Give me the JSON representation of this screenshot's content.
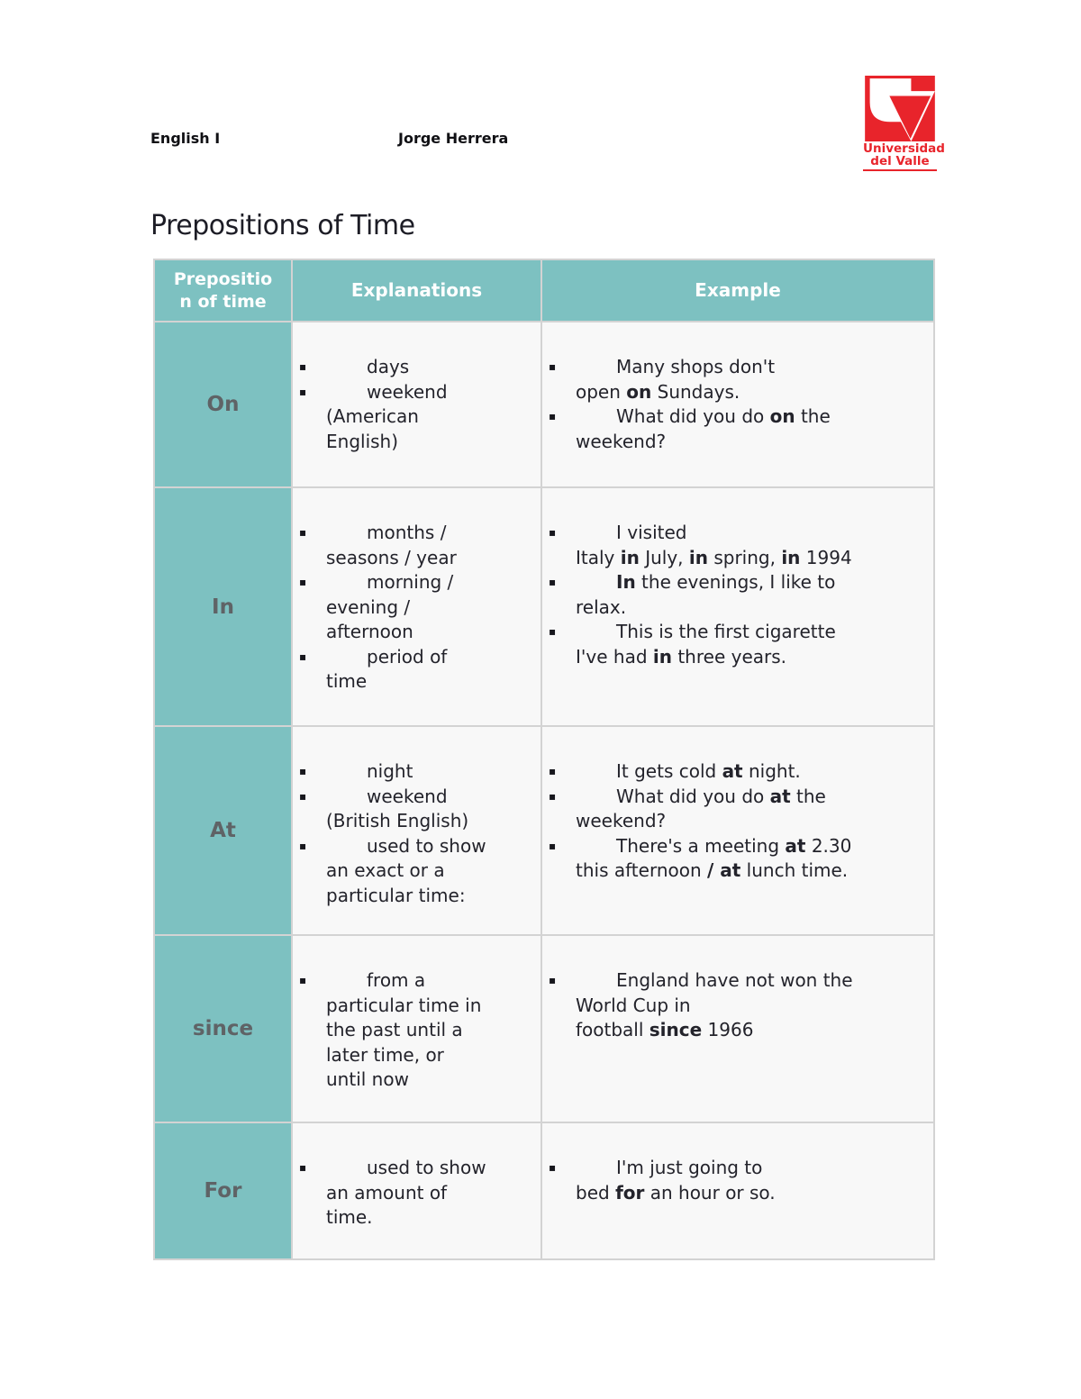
{
  "colors": {
    "accent": "#7dc1c1",
    "logo-red": "#e8242b"
  },
  "header": {
    "course": "English I",
    "author": "Jorge Herrera",
    "logo_text": "Universidad\ndel Valle"
  },
  "title": "Prepositions of Time",
  "icons": {
    "bullet": "▪"
  },
  "table": {
    "columns": [
      "Prepositio\nn of time",
      "Explanations",
      "Example"
    ],
    "rows": [
      {
        "preposition": "On",
        "explanations": [
          [
            {
              "t": "days"
            }
          ],
          [
            {
              "t": "weekend\n(American\nEnglish)"
            }
          ]
        ],
        "examples": [
          [
            {
              "t": "Many shops don't\nopen "
            },
            {
              "t": "on",
              "b": true
            },
            {
              "t": " Sundays."
            }
          ],
          [
            {
              "t": "What did you do "
            },
            {
              "t": "on",
              "b": true
            },
            {
              "t": " the\nweekend?"
            }
          ]
        ]
      },
      {
        "preposition": "In",
        "explanations": [
          [
            {
              "t": "months /\nseasons / year"
            }
          ],
          [
            {
              "t": "morning /\nevening /\nafternoon"
            }
          ],
          [
            {
              "t": "period of\ntime"
            }
          ]
        ],
        "examples": [
          [
            {
              "t": "I visited\nItaly "
            },
            {
              "t": "in",
              "b": true
            },
            {
              "t": " July, "
            },
            {
              "t": "in",
              "b": true
            },
            {
              "t": " spring, "
            },
            {
              "t": "in",
              "b": true
            },
            {
              "t": " 1994"
            }
          ],
          [
            {
              "t": "In",
              "b": true
            },
            {
              "t": " the evenings, I like to\nrelax."
            }
          ],
          [
            {
              "t": "This is the first cigarette\nI've had "
            },
            {
              "t": "in",
              "b": true
            },
            {
              "t": " three years."
            }
          ]
        ]
      },
      {
        "preposition": "At",
        "explanations": [
          [
            {
              "t": "night"
            }
          ],
          [
            {
              "t": "weekend\n(British English)"
            }
          ],
          [
            {
              "t": "used to show\nan exact or a\nparticular time:"
            }
          ]
        ],
        "examples": [
          [
            {
              "t": "It gets cold "
            },
            {
              "t": "at",
              "b": true
            },
            {
              "t": " night."
            }
          ],
          [
            {
              "t": "What did you do "
            },
            {
              "t": "at",
              "b": true
            },
            {
              "t": " the\nweekend?"
            }
          ],
          [
            {
              "t": "There's a meeting "
            },
            {
              "t": "at",
              "b": true
            },
            {
              "t": " 2.30\nthis afternoon "
            },
            {
              "t": "/ at",
              "b": true
            },
            {
              "t": " lunch time."
            }
          ]
        ]
      },
      {
        "preposition": "since",
        "explanations": [
          [
            {
              "t": "from a\nparticular time in\nthe past until a\nlater time, or\nuntil now"
            }
          ]
        ],
        "examples": [
          [
            {
              "t": "England have not won the\nWorld Cup in\nfootball "
            },
            {
              "t": "since",
              "b": true
            },
            {
              "t": " 1966"
            }
          ]
        ]
      },
      {
        "preposition": "For",
        "explanations": [
          [
            {
              "t": "used to show\nan amount of\ntime."
            }
          ]
        ],
        "examples": [
          [
            {
              "t": "I'm just going to\nbed "
            },
            {
              "t": "for",
              "b": true
            },
            {
              "t": " an hour or so."
            }
          ]
        ]
      }
    ]
  }
}
